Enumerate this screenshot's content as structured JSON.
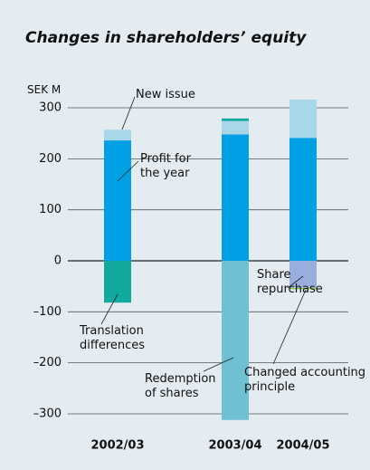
{
  "chart_data": {
    "type": "bar",
    "stacked": true,
    "title": "Changes in shareholders’ equity",
    "y_label": "SEK M",
    "categories": [
      "2002/03",
      "2003/04",
      "2004/05"
    ],
    "series": [
      {
        "name": "Profit for the year",
        "color": "#00a0e4",
        "values": [
          236,
          248,
          241
        ]
      },
      {
        "name": "New issue",
        "color": "#a9d7ea",
        "values": [
          21,
          26,
          75
        ]
      },
      {
        "name": "Translation differences",
        "color": "#12a99e",
        "values": [
          -82,
          5,
          null
        ]
      },
      {
        "name": "Redemption of shares",
        "color": "#6ec0d2",
        "values": [
          null,
          -312,
          null
        ]
      },
      {
        "name": "Share repurchase",
        "color": "#9aaede",
        "values": [
          null,
          null,
          -53
        ]
      },
      {
        "name": "Changed accounting principle",
        "color": "#8cc43c",
        "values": [
          null,
          null,
          -2
        ]
      }
    ],
    "ylim": [
      -320,
      320
    ],
    "yticks": [
      300,
      200,
      100,
      0,
      {
        "value": -100,
        "label": "–100"
      },
      {
        "value": -200,
        "label": "–200"
      },
      {
        "value": -300,
        "label": "–300"
      }
    ],
    "grid": true
  }
}
